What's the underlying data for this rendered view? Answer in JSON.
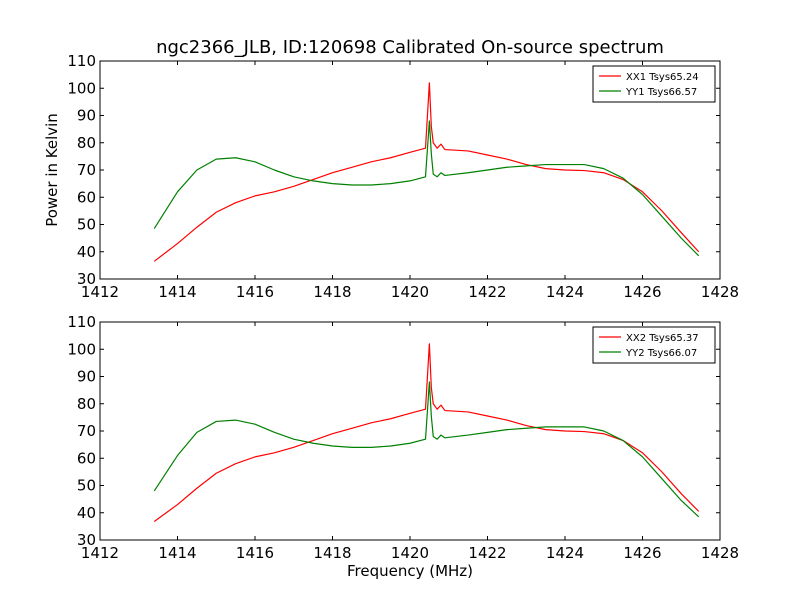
{
  "figure": {
    "title": "ngc2366_JLB, ID:120698 Calibrated On-source spectrum"
  },
  "chart_data": [
    {
      "type": "line",
      "title": "ngc2366_JLB, ID:120698 Calibrated On-source spectrum",
      "xlabel": "",
      "ylabel": "Power in Kelvin",
      "xlim": [
        1412,
        1428
      ],
      "ylim": [
        30,
        110
      ],
      "xticks": [
        "1412",
        "1414",
        "1416",
        "1418",
        "1420",
        "1422",
        "1424",
        "1426",
        "1428"
      ],
      "yticks": [
        "30",
        "40",
        "50",
        "60",
        "70",
        "80",
        "90",
        "100",
        "110"
      ],
      "grid": false,
      "legend": "top-right",
      "series": [
        {
          "name": "XX1 Tsys65.24",
          "color": "#ff0000",
          "x": [
            1413.4,
            1414.0,
            1414.5,
            1415.0,
            1415.5,
            1416.0,
            1416.5,
            1417.0,
            1417.5,
            1418.0,
            1418.5,
            1419.0,
            1419.5,
            1420.0,
            1420.4,
            1420.5,
            1420.55,
            1420.6,
            1420.7,
            1420.8,
            1420.9,
            1421.5,
            1422.0,
            1422.5,
            1423.0,
            1423.5,
            1424.0,
            1424.5,
            1425.0,
            1425.5,
            1426.0,
            1426.5,
            1427.0,
            1427.45
          ],
          "y": [
            36.5,
            43,
            49,
            54.5,
            58,
            60.5,
            62,
            64,
            66.5,
            69,
            71,
            73,
            74.5,
            76.5,
            78,
            102,
            86,
            80,
            78,
            79.5,
            77.5,
            77,
            75.5,
            74,
            72,
            70.5,
            70,
            69.8,
            69,
            66.5,
            62,
            55,
            47,
            40
          ]
        },
        {
          "name": "YY1 Tsys66.57",
          "color": "#008000",
          "x": [
            1413.4,
            1414.0,
            1414.5,
            1415.0,
            1415.5,
            1416.0,
            1416.5,
            1417.0,
            1417.5,
            1418.0,
            1418.5,
            1419.0,
            1419.5,
            1420.0,
            1420.4,
            1420.5,
            1420.55,
            1420.6,
            1420.7,
            1420.8,
            1420.9,
            1421.5,
            1422.0,
            1422.5,
            1423.0,
            1423.5,
            1424.0,
            1424.5,
            1425.0,
            1425.5,
            1426.0,
            1426.5,
            1427.0,
            1427.45
          ],
          "y": [
            48.5,
            62,
            70,
            74,
            74.5,
            73,
            70,
            67.5,
            66,
            65,
            64.5,
            64.5,
            65,
            66,
            67.5,
            88,
            76,
            68.5,
            67.5,
            69,
            68,
            69,
            70,
            71,
            71.5,
            72,
            72,
            72,
            70.5,
            67,
            61,
            53,
            45,
            38.5
          ]
        }
      ]
    },
    {
      "type": "line",
      "title": "",
      "xlabel": "Frequency (MHz)",
      "ylabel": "",
      "xlim": [
        1412,
        1428
      ],
      "ylim": [
        30,
        110
      ],
      "xticks": [
        "1412",
        "1414",
        "1416",
        "1418",
        "1420",
        "1422",
        "1424",
        "1426",
        "1428"
      ],
      "yticks": [
        "30",
        "40",
        "50",
        "60",
        "70",
        "80",
        "90",
        "100",
        "110"
      ],
      "grid": false,
      "legend": "top-right",
      "series": [
        {
          "name": "XX2 Tsys65.37",
          "color": "#ff0000",
          "x": [
            1413.4,
            1414.0,
            1414.5,
            1415.0,
            1415.5,
            1416.0,
            1416.5,
            1417.0,
            1417.5,
            1418.0,
            1418.5,
            1419.0,
            1419.5,
            1420.0,
            1420.4,
            1420.5,
            1420.55,
            1420.6,
            1420.7,
            1420.8,
            1420.9,
            1421.5,
            1422.0,
            1422.5,
            1423.0,
            1423.5,
            1424.0,
            1424.5,
            1425.0,
            1425.5,
            1426.0,
            1426.5,
            1427.0,
            1427.45
          ],
          "y": [
            36.8,
            43,
            49,
            54.5,
            58,
            60.5,
            62,
            64,
            66.5,
            69,
            71,
            73,
            74.5,
            76.5,
            78,
            102,
            86,
            80,
            78,
            79.5,
            77.5,
            77,
            75.5,
            74,
            72,
            70.5,
            70,
            69.8,
            69,
            66.5,
            62,
            55,
            47,
            40.5
          ]
        },
        {
          "name": "YY2 Tsys66.07",
          "color": "#008000",
          "x": [
            1413.4,
            1414.0,
            1414.5,
            1415.0,
            1415.5,
            1416.0,
            1416.5,
            1417.0,
            1417.5,
            1418.0,
            1418.5,
            1419.0,
            1419.5,
            1420.0,
            1420.4,
            1420.5,
            1420.55,
            1420.6,
            1420.7,
            1420.8,
            1420.9,
            1421.5,
            1422.0,
            1422.5,
            1423.0,
            1423.5,
            1424.0,
            1424.5,
            1425.0,
            1425.5,
            1426.0,
            1426.5,
            1427.0,
            1427.45
          ],
          "y": [
            48,
            61,
            69.5,
            73.5,
            74,
            72.5,
            69.5,
            67,
            65.5,
            64.5,
            64,
            64,
            64.5,
            65.5,
            67,
            88,
            75.5,
            68,
            67,
            68.5,
            67.5,
            68.5,
            69.5,
            70.5,
            71,
            71.5,
            71.5,
            71.5,
            70,
            66.5,
            60.5,
            52.5,
            44.5,
            38.5
          ]
        }
      ]
    }
  ]
}
